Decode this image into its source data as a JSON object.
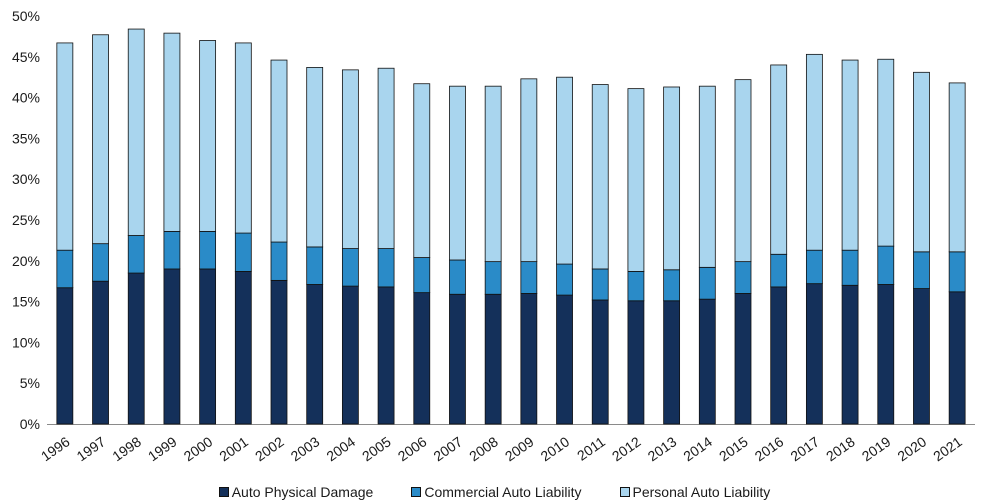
{
  "chart_data": {
    "type": "bar",
    "stacked": true,
    "title": "",
    "xlabel": "",
    "ylabel": "",
    "ylim": [
      0,
      50
    ],
    "y_tick_values": [
      0,
      5,
      10,
      15,
      20,
      25,
      30,
      35,
      40,
      45,
      50
    ],
    "y_tick_labels": [
      "0%",
      "5%",
      "10%",
      "15%",
      "20%",
      "25%",
      "30%",
      "35%",
      "40%",
      "45%",
      "50%"
    ],
    "grid": false,
    "legend_position": "bottom",
    "categories": [
      "1996",
      "1997",
      "1998",
      "1999",
      "2000",
      "2001",
      "2002",
      "2003",
      "2004",
      "2005",
      "2006",
      "2007",
      "2008",
      "2009",
      "2010",
      "2011",
      "2012",
      "2013",
      "2014",
      "2015",
      "2016",
      "2017",
      "2018",
      "2019",
      "2020",
      "2021"
    ],
    "series": [
      {
        "name": "Auto Physical Damage",
        "color": "#14305a",
        "values": [
          16.7,
          17.5,
          18.5,
          19.0,
          19.0,
          18.7,
          17.6,
          17.1,
          16.9,
          16.8,
          16.1,
          15.9,
          15.9,
          16.0,
          15.8,
          15.2,
          15.1,
          15.1,
          15.3,
          16.0,
          16.8,
          17.2,
          17.0,
          17.1,
          16.6,
          16.2
        ]
      },
      {
        "name": "Commercial Auto Liability",
        "color": "#2a8bc8",
        "values": [
          4.6,
          4.6,
          4.6,
          4.6,
          4.6,
          4.7,
          4.7,
          4.6,
          4.6,
          4.7,
          4.3,
          4.2,
          4.0,
          3.9,
          3.8,
          3.8,
          3.6,
          3.8,
          3.9,
          3.9,
          4.0,
          4.1,
          4.3,
          4.7,
          4.5,
          4.9
        ]
      },
      {
        "name": "Personal Auto Liability",
        "color": "#a9d5ee",
        "values": [
          25.4,
          25.6,
          25.3,
          24.3,
          23.4,
          23.3,
          22.3,
          22.0,
          21.9,
          22.1,
          21.3,
          21.3,
          21.5,
          22.4,
          22.9,
          22.6,
          22.4,
          22.4,
          22.2,
          22.3,
          23.2,
          24.0,
          23.3,
          22.9,
          22.0,
          20.7
        ]
      }
    ]
  }
}
